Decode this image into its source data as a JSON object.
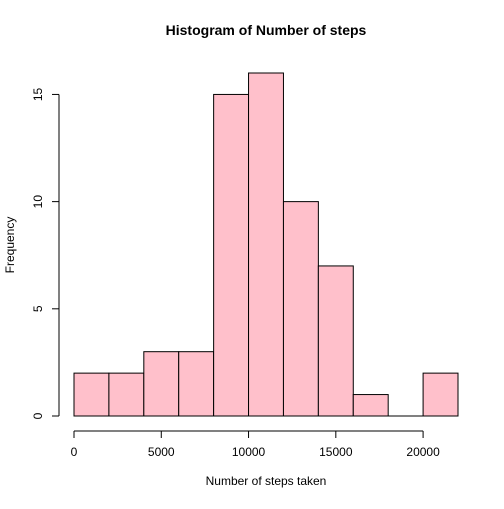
{
  "chart_data": {
    "type": "bar",
    "title": "Histogram of Number of steps",
    "xlabel": "Number of steps taken",
    "ylabel": "Frequency",
    "bins": [
      {
        "start": 0,
        "end": 2000,
        "count": 2
      },
      {
        "start": 2000,
        "end": 4000,
        "count": 2
      },
      {
        "start": 4000,
        "end": 6000,
        "count": 3
      },
      {
        "start": 6000,
        "end": 8000,
        "count": 3
      },
      {
        "start": 8000,
        "end": 10000,
        "count": 15
      },
      {
        "start": 10000,
        "end": 12000,
        "count": 16
      },
      {
        "start": 12000,
        "end": 14000,
        "count": 10
      },
      {
        "start": 14000,
        "end": 16000,
        "count": 7
      },
      {
        "start": 16000,
        "end": 18000,
        "count": 1
      },
      {
        "start": 18000,
        "end": 20000,
        "count": 0
      },
      {
        "start": 20000,
        "end": 22000,
        "count": 2
      }
    ],
    "xticks": [
      0,
      5000,
      10000,
      15000,
      20000
    ],
    "yticks": [
      0,
      5,
      10,
      15
    ],
    "xlim": [
      0,
      22000
    ],
    "ylim": [
      0,
      16
    ],
    "bar_fill": "#ffc0cb",
    "bar_stroke": "#000000",
    "grid": false,
    "legend": "none"
  }
}
